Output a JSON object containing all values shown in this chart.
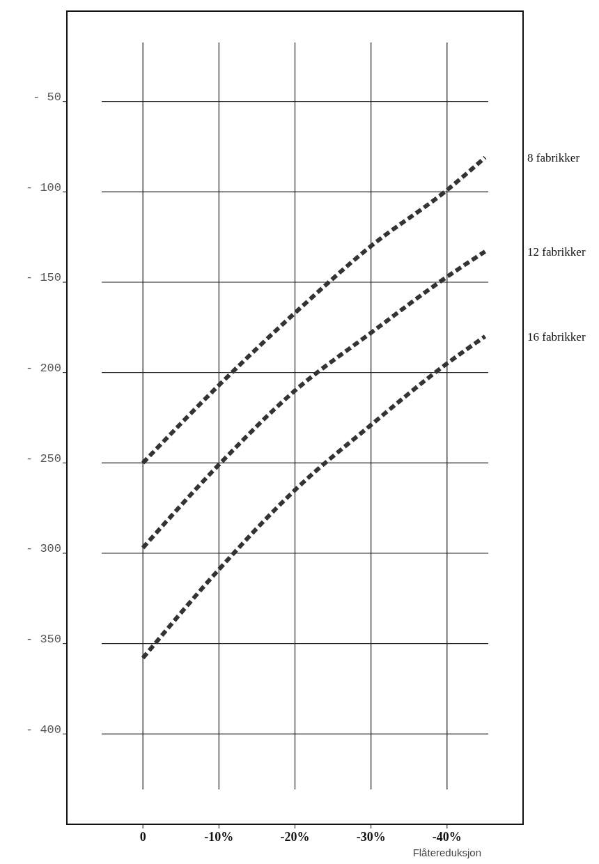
{
  "chart_data": {
    "type": "line",
    "xlabel": "Flåtereduksjon",
    "xlim": [
      10,
      -50
    ],
    "xticks": [
      0,
      {
        "value": -10,
        "label": "-10%"
      },
      {
        "value": -20,
        "label": "-20%"
      },
      {
        "value": -30,
        "label": "-30%"
      },
      {
        "value": -40,
        "label": "-40%"
      }
    ],
    "ylim": [
      -450,
      0
    ],
    "yticks": [
      {
        "value": -50,
        "label": "- 50"
      },
      {
        "value": -100,
        "label": "- 100"
      },
      {
        "value": -150,
        "label": "- 150"
      },
      {
        "value": -200,
        "label": "- 200"
      },
      {
        "value": -250,
        "label": "- 250"
      },
      {
        "value": -300,
        "label": "- 300"
      },
      {
        "value": -350,
        "label": "- 350"
      },
      {
        "value": -400,
        "label": "- 400"
      }
    ],
    "grid": true,
    "line_style": "dashed",
    "marker": "none",
    "series": [
      {
        "name": "8 fabrikker",
        "color": "#333333",
        "x": [
          0,
          -10,
          -20,
          -30,
          -40,
          -45
        ],
        "values": [
          -250,
          -207,
          -167,
          -130,
          -99,
          -81
        ]
      },
      {
        "name": "12 fabrikker",
        "color": "#333333",
        "x": [
          0,
          -10,
          -20,
          -30,
          -40,
          -45
        ],
        "values": [
          -297,
          -251,
          -210,
          -178,
          -147,
          -133
        ]
      },
      {
        "name": "16 fabrikker",
        "color": "#333333",
        "x": [
          0,
          -10,
          -20,
          -30,
          -40,
          -45
        ],
        "values": [
          -358,
          -309,
          -265,
          -229,
          -195,
          -180
        ]
      }
    ]
  }
}
